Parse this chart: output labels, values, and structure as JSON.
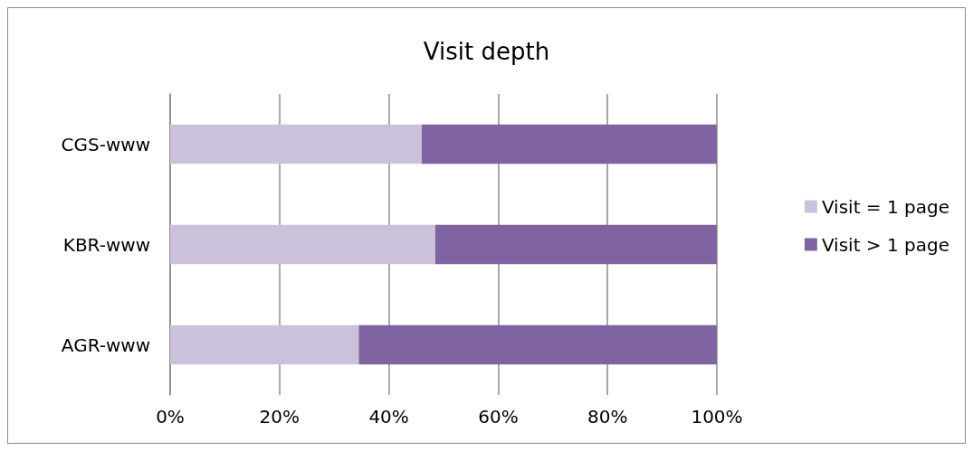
{
  "chart_data": {
    "type": "bar",
    "title": "Visit depth",
    "orientation": "horizontal",
    "stacked": true,
    "categories": [
      "CGS-www",
      "KBR-www",
      "AGR-www"
    ],
    "series": [
      {
        "name": "Visit = 1 page",
        "color": "#ccc1da",
        "values": [
          46,
          48.5,
          34.5
        ]
      },
      {
        "name": "Visit > 1 page",
        "color": "#8064a2",
        "values": [
          54,
          51.5,
          65.5
        ]
      }
    ],
    "xlim": [
      0,
      100
    ],
    "xticks": [
      {
        "value": 0,
        "label": "0%"
      },
      {
        "value": 20,
        "label": "20%"
      },
      {
        "value": 40,
        "label": "40%"
      },
      {
        "value": 60,
        "label": "60%"
      },
      {
        "value": 80,
        "label": "80%"
      },
      {
        "value": 100,
        "label": "100%"
      }
    ],
    "grid": "x",
    "legend": "right"
  }
}
